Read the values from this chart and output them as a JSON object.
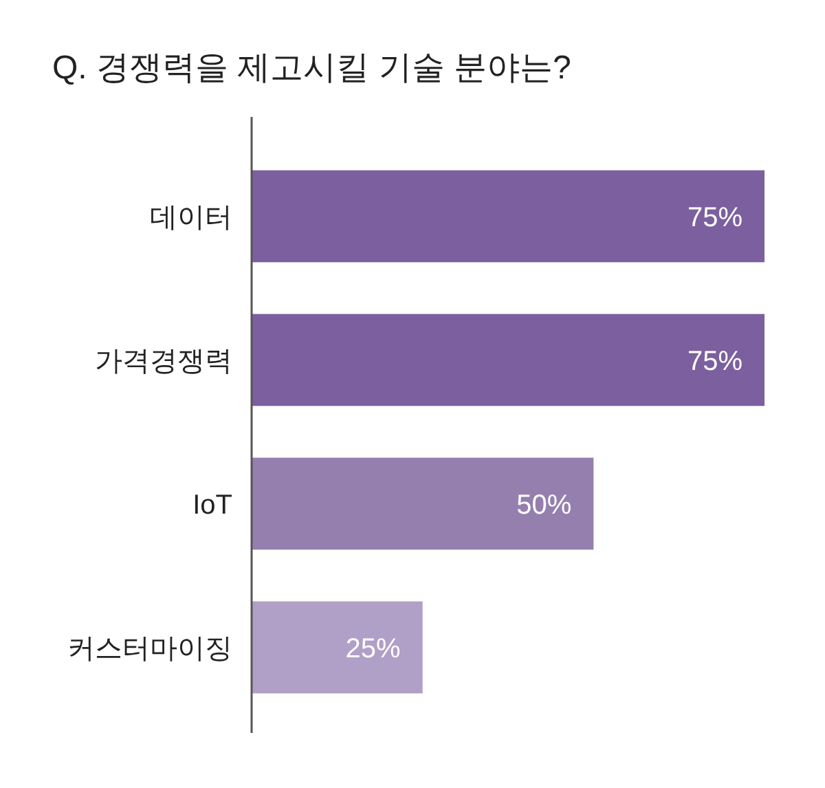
{
  "chart_data": {
    "type": "bar",
    "orientation": "horizontal",
    "title": "Q. 경쟁력을 제고시킬 기술 분야는?",
    "categories": [
      "데이터",
      "가격경쟁력",
      "IoT",
      "커스터마이징"
    ],
    "values": [
      75,
      75,
      50,
      25
    ],
    "value_labels": [
      "75%",
      "75%",
      "50%",
      "25%"
    ],
    "colors": [
      "#7b5f9e",
      "#7b5f9e",
      "#957fae",
      "#b09fc6"
    ]
  }
}
